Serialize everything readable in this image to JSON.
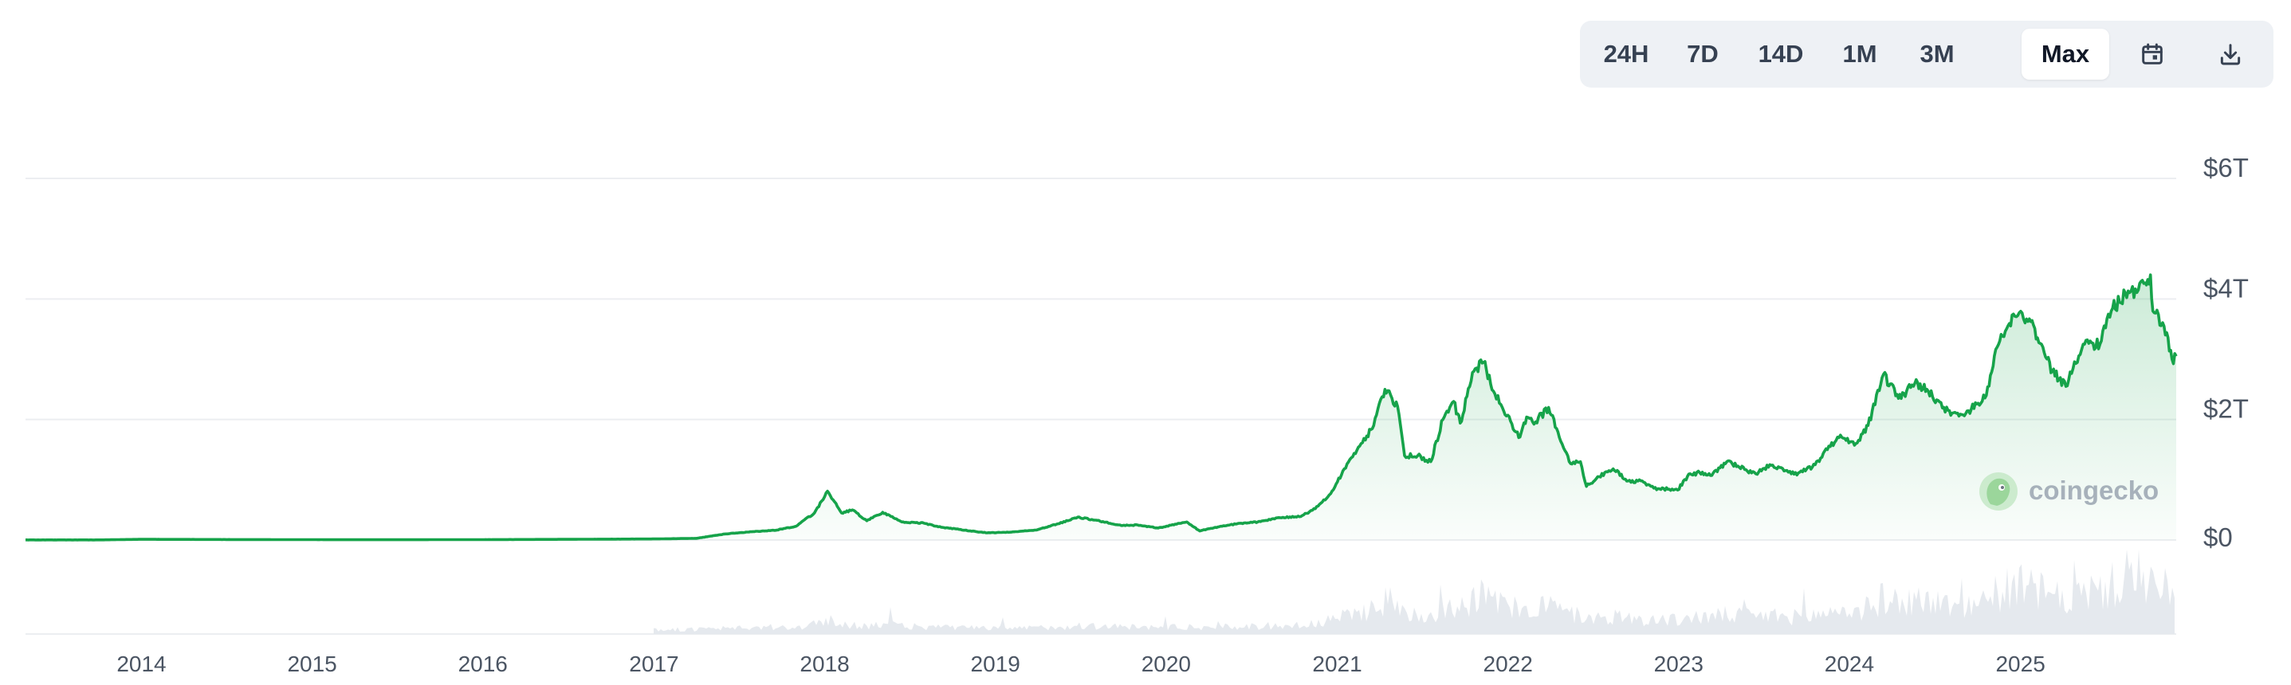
{
  "toolbar": {
    "ranges": [
      "24H",
      "7D",
      "14D",
      "1M",
      "3M",
      "Max"
    ],
    "active_range": "Max",
    "calendar_icon": "calendar-icon",
    "download_icon": "download-icon"
  },
  "watermark": {
    "text": "coingecko",
    "logo_icon": "coingecko-gecko-icon"
  },
  "colors": {
    "line": "#16a34a",
    "area_top": "#16a34a",
    "volume": "#e5e9ee",
    "grid": "#eceef1",
    "axis_text": "#4b5563",
    "watermark": "#9aa5b1"
  },
  "chart_data": {
    "type": "area",
    "title": "",
    "xlabel": "",
    "ylabel": "",
    "x_ticks": [
      "2014",
      "2015",
      "2016",
      "2017",
      "2018",
      "2019",
      "2020",
      "2021",
      "2022",
      "2023",
      "2024",
      "2025"
    ],
    "y_ticks": [
      "$0",
      "$2T",
      "$4T",
      "$6T"
    ],
    "ylim": [
      0,
      6
    ],
    "y_unit": "T USD",
    "grid": true,
    "series": [
      {
        "x": [
          "2013-04-28",
          "2013-10-01",
          "2014-01-01",
          "2014-06-01",
          "2015-01-01",
          "2015-06-01",
          "2016-01-01",
          "2016-06-01",
          "2017-01-01",
          "2017-04-01",
          "2017-06-01",
          "2017-08-01",
          "2017-09-15",
          "2017-11-01",
          "2017-12-10",
          "2018-01-07",
          "2018-02-06",
          "2018-03-01",
          "2018-04-01",
          "2018-05-05",
          "2018-06-15",
          "2018-08-01",
          "2018-09-01",
          "2018-11-20",
          "2018-12-15",
          "2019-02-01",
          "2019-04-01",
          "2019-05-15",
          "2019-06-26",
          "2019-08-01",
          "2019-09-30",
          "2019-11-01",
          "2019-12-15",
          "2020-02-14",
          "2020-03-13",
          "2020-04-15",
          "2020-06-01",
          "2020-07-15",
          "2020-09-01",
          "2020-10-15",
          "2020-11-15",
          "2020-12-15",
          "2021-01-10",
          "2021-02-21",
          "2021-03-20",
          "2021-04-13",
          "2021-05-10",
          "2021-05-25",
          "2021-06-22",
          "2021-07-20",
          "2021-08-15",
          "2021-09-07",
          "2021-09-21",
          "2021-10-20",
          "2021-11-10",
          "2021-12-01",
          "2021-12-20",
          "2022-01-24",
          "2022-02-10",
          "2022-03-01",
          "2022-03-29",
          "2022-04-15",
          "2022-05-12",
          "2022-06-05",
          "2022-06-18",
          "2022-07-15",
          "2022-08-14",
          "2022-09-15",
          "2022-10-15",
          "2022-11-09",
          "2022-12-30",
          "2023-01-20",
          "2023-02-15",
          "2023-03-10",
          "2023-04-14",
          "2023-06-15",
          "2023-07-15",
          "2023-09-11",
          "2023-10-20",
          "2023-11-15",
          "2023-12-10",
          "2024-01-15",
          "2024-02-10",
          "2024-03-14",
          "2024-04-15",
          "2024-05-20",
          "2024-06-15",
          "2024-08-05",
          "2024-09-06",
          "2024-10-20",
          "2024-11-12",
          "2024-12-17",
          "2025-01-20",
          "2025-02-15",
          "2025-03-10",
          "2025-04-08",
          "2025-05-15",
          "2025-06-20",
          "2025-07-14",
          "2025-08-13",
          "2025-09-10",
          "2025-10-06",
          "2025-10-11",
          "2025-11-04",
          "2025-11-21",
          "2025-11-30"
        ],
        "values": [
          0.002,
          0.002,
          0.012,
          0.009,
          0.006,
          0.005,
          0.007,
          0.011,
          0.018,
          0.028,
          0.1,
          0.14,
          0.16,
          0.23,
          0.45,
          0.81,
          0.45,
          0.5,
          0.32,
          0.46,
          0.3,
          0.28,
          0.22,
          0.14,
          0.12,
          0.13,
          0.17,
          0.27,
          0.38,
          0.33,
          0.24,
          0.25,
          0.2,
          0.3,
          0.15,
          0.21,
          0.27,
          0.3,
          0.37,
          0.39,
          0.52,
          0.75,
          1.08,
          1.6,
          1.9,
          2.5,
          2.22,
          1.4,
          1.4,
          1.3,
          2.0,
          2.3,
          1.94,
          2.8,
          2.95,
          2.47,
          2.2,
          1.7,
          2.04,
          1.96,
          2.2,
          1.85,
          1.3,
          1.3,
          0.89,
          1.05,
          1.18,
          0.98,
          0.98,
          0.86,
          0.83,
          1.06,
          1.12,
          1.07,
          1.3,
          1.1,
          1.25,
          1.08,
          1.25,
          1.5,
          1.7,
          1.6,
          1.9,
          2.75,
          2.35,
          2.6,
          2.5,
          2.07,
          2.1,
          2.4,
          3.2,
          3.75,
          3.67,
          3.25,
          2.8,
          2.55,
          3.25,
          3.25,
          3.8,
          4.1,
          4.15,
          4.4,
          3.8,
          3.55,
          3.0,
          3.05
        ]
      }
    ]
  }
}
